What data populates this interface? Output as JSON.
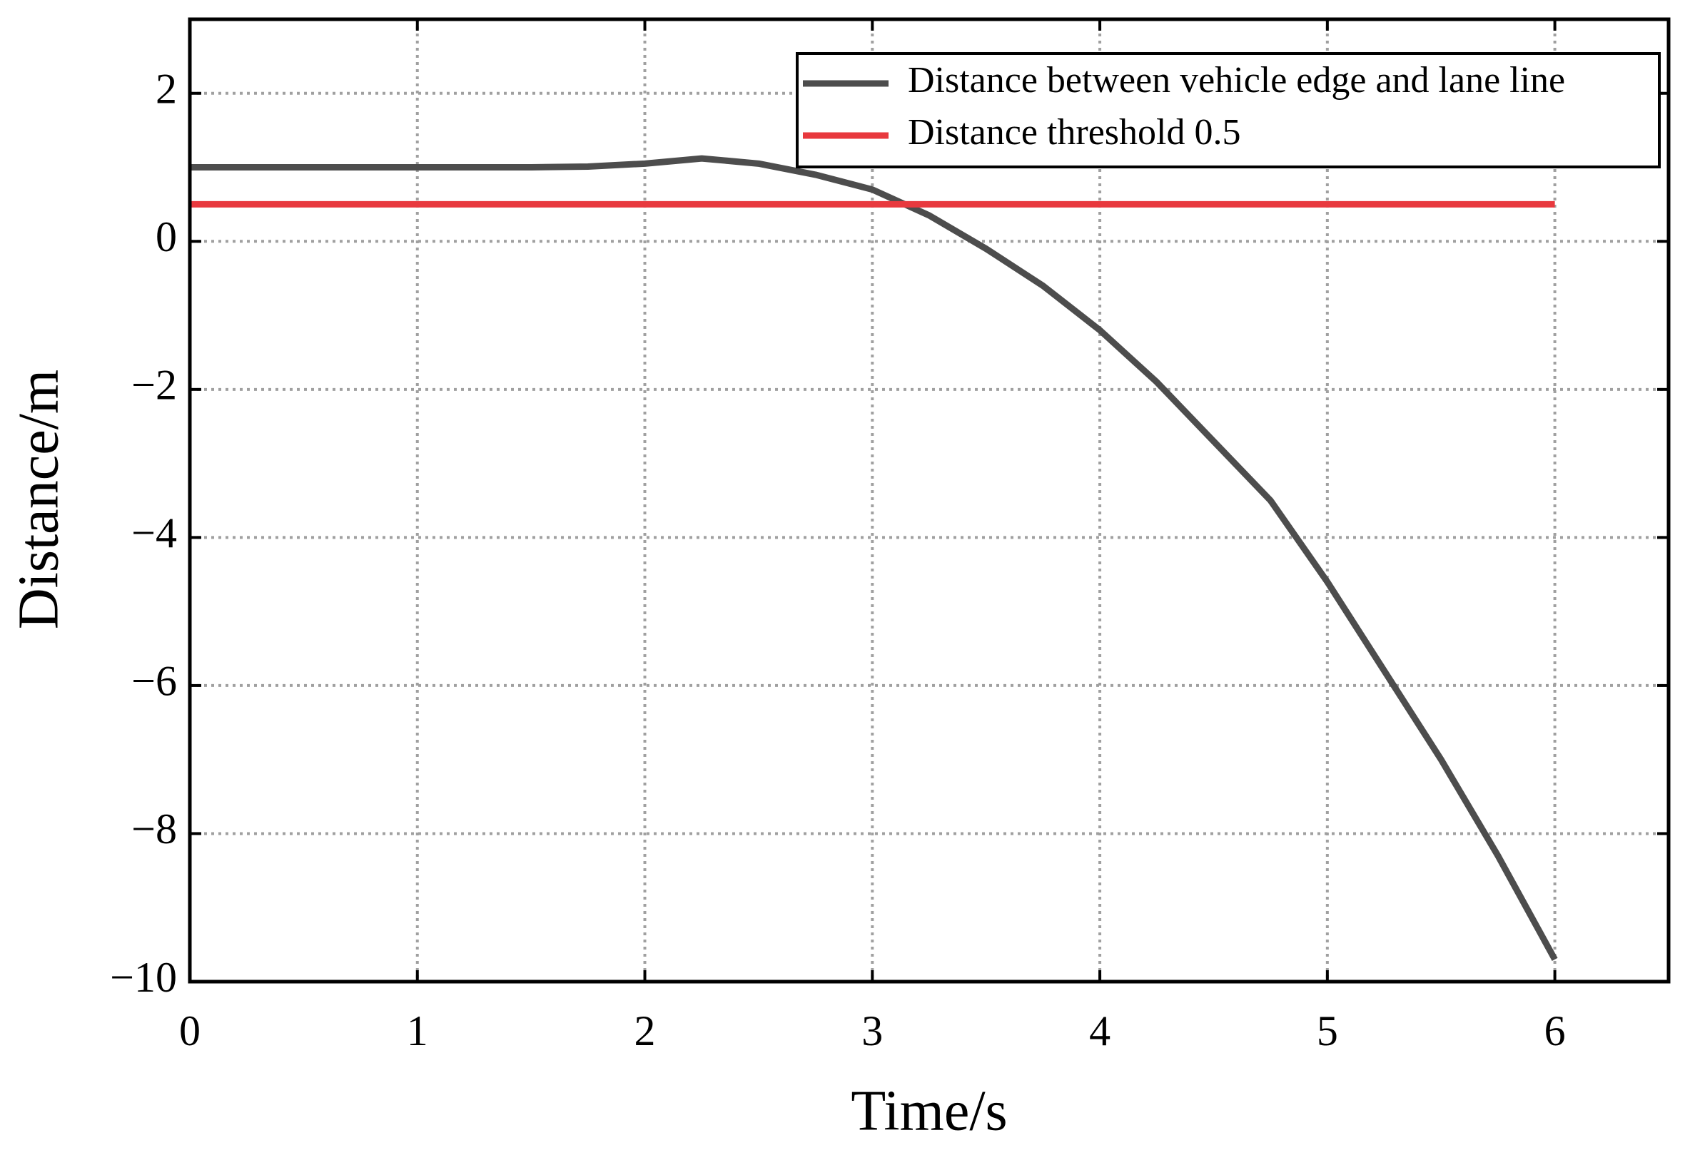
{
  "chart_data": {
    "type": "line",
    "x_label": "Time/s",
    "y_label": "Distance/m",
    "x": [
      0,
      0.5,
      1,
      1.5,
      1.75,
      2,
      2.25,
      2.5,
      2.75,
      3,
      3.25,
      3.5,
      3.75,
      4,
      4.25,
      4.5,
      4.75,
      5,
      5.25,
      5.5,
      5.75,
      6
    ],
    "series": [
      {
        "name": "Distance between vehicle edge and lane line",
        "color": "#4d4d4d",
        "values": [
          1.0,
          1.0,
          1.0,
          1.0,
          1.01,
          1.05,
          1.12,
          1.05,
          0.9,
          0.7,
          0.35,
          -0.1,
          -0.6,
          -1.2,
          -1.9,
          -2.7,
          -3.5,
          -4.6,
          -5.8,
          -7.0,
          -8.3,
          -9.7
        ]
      },
      {
        "name": "Distance threshold 0.5",
        "color": "#e8393e",
        "values": [
          0.5,
          0.5,
          0.5,
          0.5,
          0.5,
          0.5,
          0.5,
          0.5,
          0.5,
          0.5,
          0.5,
          0.5,
          0.5,
          0.5,
          0.5,
          0.5,
          0.5,
          0.5,
          0.5,
          0.5,
          0.5,
          0.5
        ]
      }
    ],
    "xlim": [
      0,
      6.5
    ],
    "xticks": [
      0,
      1,
      2,
      3,
      4,
      5,
      6
    ],
    "ylim": [
      -10,
      3
    ],
    "yticks": [
      {
        "value": -10,
        "label": "−10"
      },
      {
        "value": -8,
        "label": "−8"
      },
      {
        "value": -6,
        "label": "−6"
      },
      {
        "value": -4,
        "label": "−4"
      },
      {
        "value": -2,
        "label": "−2"
      },
      0,
      2
    ],
    "grid": true,
    "legend": "upper right"
  }
}
